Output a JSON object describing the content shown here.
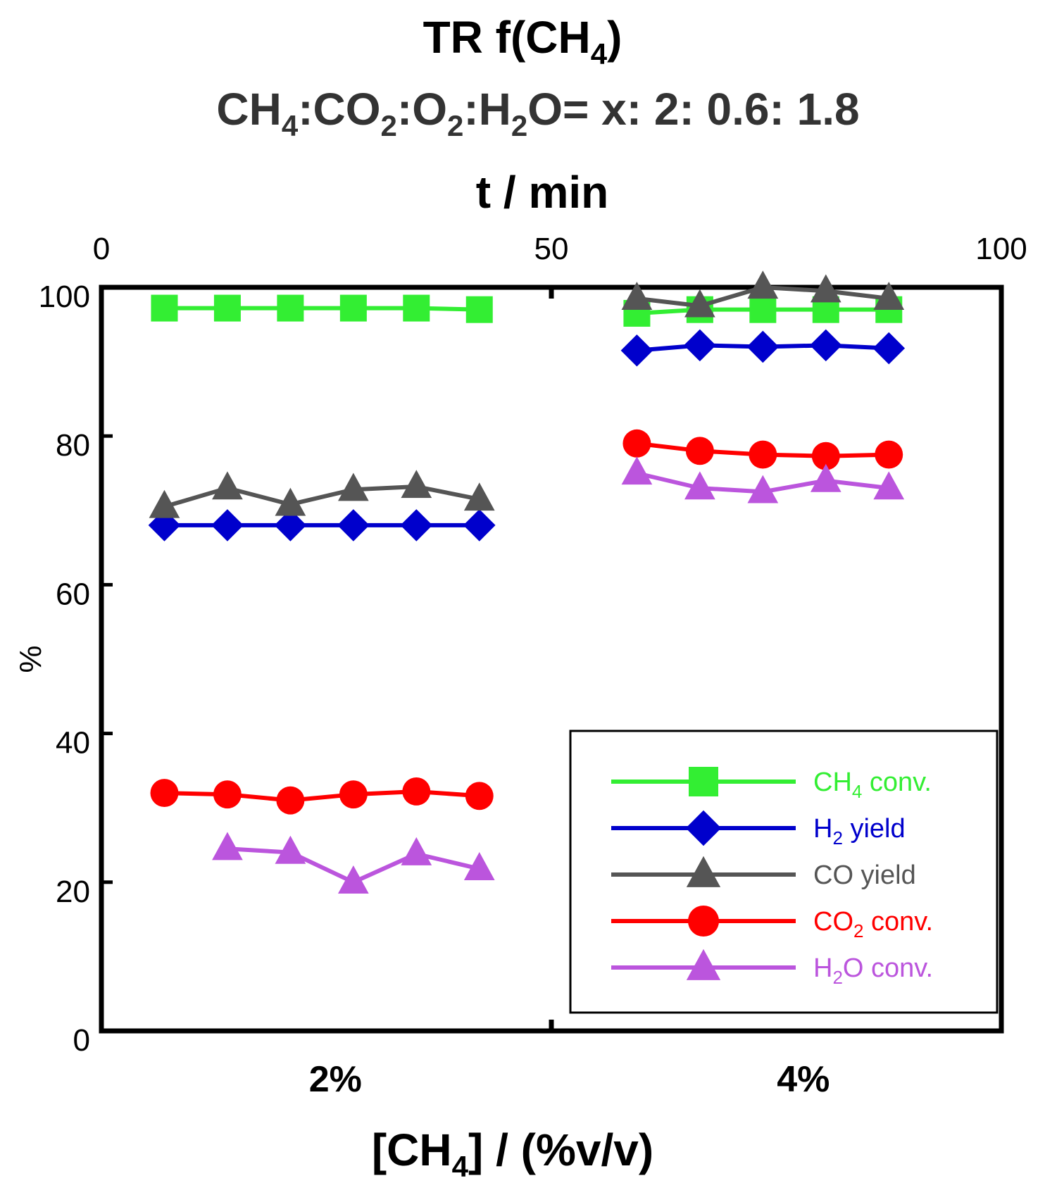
{
  "chart_data": {
    "type": "line",
    "title": "TR f(CH4)",
    "title_parts": {
      "main": "TR f(CH",
      "sub": "4",
      "end": ")"
    },
    "subtitle": "CH4:CO2:O2:H2O= x: 2: 0.6: 1.8",
    "subtitle_parts": [
      {
        "t": "CH",
        "s": false
      },
      {
        "t": "4",
        "s": true
      },
      {
        "t": ":CO",
        "s": false
      },
      {
        "t": "2",
        "s": true
      },
      {
        "t": ":O",
        "s": false
      },
      {
        "t": "2",
        "s": true
      },
      {
        "t": ":H",
        "s": false
      },
      {
        "t": "2",
        "s": true
      },
      {
        "t": "O= x: 2: 0.6: 1.8",
        "s": false
      }
    ],
    "top_xlabel": "t / min",
    "top_xlim": [
      0,
      100
    ],
    "top_xticks": [
      "0",
      "50",
      "100"
    ],
    "ylabel": "%",
    "ylim": [
      0,
      100
    ],
    "yticks": [
      "0",
      "20",
      "40",
      "60",
      "80",
      "100"
    ],
    "xlabel": "[CH4] / (%v/v)",
    "xlabel_parts": {
      "a": "[CH",
      "sub": "4",
      "b": "] / (%v/v)"
    },
    "categories": [
      "2%",
      "4%"
    ],
    "category_positions": [
      26,
      78
    ],
    "segment_breaks": [
      [
        6,
        44.5
      ],
      [
        58.5,
        88
      ]
    ],
    "legend_position": "bottom-right",
    "series": [
      {
        "name": "CH4 conv.",
        "name_parts": {
          "a": "CH",
          "sub": "4",
          "b": " conv."
        },
        "color": "#33ee33",
        "marker": "square",
        "x": [
          7,
          14,
          21,
          28,
          35,
          42,
          59.5,
          66.5,
          73.5,
          80.5,
          87.5
        ],
        "y": [
          97.2,
          97.2,
          97.2,
          97.2,
          97.2,
          97.0,
          96.5,
          97.0,
          97.0,
          97.0,
          97.0
        ]
      },
      {
        "name": "H2 yield",
        "name_parts": {
          "a": "H",
          "sub": "2",
          "b": " yield"
        },
        "color": "#0000cc",
        "marker": "diamond",
        "x": [
          7,
          14,
          21,
          28,
          35,
          42,
          59.5,
          66.5,
          73.5,
          80.5,
          87.5
        ],
        "y": [
          68.0,
          68.0,
          68.0,
          68.0,
          68.0,
          68.0,
          91.5,
          92.2,
          92.0,
          92.2,
          91.8
        ]
      },
      {
        "name": "CO yield",
        "name_parts": {
          "a": "CO yield",
          "sub": "",
          "b": ""
        },
        "color": "#555555",
        "marker": "triangle",
        "x": [
          7,
          14,
          21,
          28,
          35,
          42,
          59.5,
          66.5,
          73.5,
          80.5,
          87.5
        ],
        "y": [
          70.5,
          73.0,
          70.8,
          72.8,
          73.2,
          71.5,
          98.5,
          97.5,
          100.0,
          99.5,
          98.5
        ]
      },
      {
        "name": "CO2 conv.",
        "name_parts": {
          "a": "CO",
          "sub": "2",
          "b": " conv."
        },
        "color": "#ff0000",
        "marker": "circle",
        "x": [
          7,
          14,
          21,
          28,
          35,
          42,
          59.5,
          66.5,
          73.5,
          80.5,
          87.5
        ],
        "y": [
          32.0,
          31.8,
          31.0,
          31.8,
          32.2,
          31.6,
          79.0,
          78.0,
          77.5,
          77.3,
          77.5
        ]
      },
      {
        "name": "H2O conv.",
        "name_parts": {
          "a": "H",
          "sub": "2",
          "b": "O conv."
        },
        "color": "#bb55dd",
        "marker": "triangle",
        "x": [
          14,
          21,
          28,
          35,
          42,
          59.5,
          66.5,
          73.5,
          80.5,
          87.5
        ],
        "y": [
          24.5,
          24.0,
          20.0,
          23.8,
          21.8,
          75.0,
          73.0,
          72.5,
          74.0,
          73.0
        ]
      }
    ]
  }
}
